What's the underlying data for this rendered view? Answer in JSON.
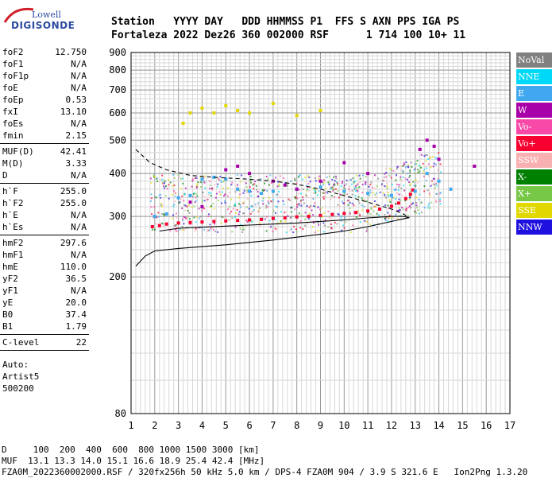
{
  "logo": {
    "line1": "Lowell",
    "line2": "DIGISONDE"
  },
  "header": {
    "line1": "Station   YYYY DAY   DDD HHMMSS P1  FFS S AXN PPS IGA PS",
    "line2": "Fortaleza 2022 Dez26 360 002000 RSF      1 714 100 10+ 11"
  },
  "params": {
    "group1": [
      {
        "k": "foF2",
        "v": "12.750"
      },
      {
        "k": "foF1",
        "v": "N/A"
      },
      {
        "k": "foF1p",
        "v": "N/A"
      },
      {
        "k": "foE",
        "v": "N/A"
      },
      {
        "k": "foEp",
        "v": "0.53"
      },
      {
        "k": "fxI",
        "v": "13.10"
      },
      {
        "k": "foEs",
        "v": "N/A"
      },
      {
        "k": "fmin",
        "v": "2.15"
      }
    ],
    "group2": [
      {
        "k": "MUF(D)",
        "v": "42.41"
      },
      {
        "k": "M(D)",
        "v": "3.33"
      },
      {
        "k": "D",
        "v": "N/A"
      }
    ],
    "group3": [
      {
        "k": "h`F",
        "v": "255.0"
      },
      {
        "k": "h`F2",
        "v": "255.0"
      },
      {
        "k": "h`E",
        "v": "N/A"
      },
      {
        "k": "h`Es",
        "v": "N/A"
      }
    ],
    "group4": [
      {
        "k": "hmF2",
        "v": "297.6"
      },
      {
        "k": "hmF1",
        "v": "N/A"
      },
      {
        "k": "hmE",
        "v": "110.0"
      },
      {
        "k": "yF2",
        "v": "36.5"
      },
      {
        "k": "yF1",
        "v": "N/A"
      },
      {
        "k": "yE",
        "v": "20.0"
      },
      {
        "k": "B0",
        "v": "37.4"
      },
      {
        "k": "B1",
        "v": "1.79"
      }
    ],
    "group5": [
      {
        "k": "C-level",
        "v": "22"
      }
    ],
    "auto": [
      "Auto:",
      "Artist5",
      "500200"
    ]
  },
  "legend": [
    {
      "label": "NoVal",
      "color": "#808080"
    },
    {
      "label": "NNE",
      "color": "#00d8f8"
    },
    {
      "label": "E",
      "color": "#40a8f0"
    },
    {
      "label": "W",
      "color": "#a800a8"
    },
    {
      "label": "Vo-",
      "color": "#f848a8"
    },
    {
      "label": "Vo+",
      "color": "#f80030"
    },
    {
      "label": "SSW",
      "color": "#f8b0b0"
    },
    {
      "label": "X-",
      "color": "#008000"
    },
    {
      "label": "X+",
      "color": "#78c848"
    },
    {
      "label": "SSE",
      "color": "#e0d800"
    },
    {
      "label": "NNW",
      "color": "#2010e0"
    }
  ],
  "chart_data": {
    "type": "scatter",
    "title": "",
    "xlabel": "",
    "ylabel": "",
    "xlim": [
      1,
      17
    ],
    "ylim": [
      80,
      900
    ],
    "x_ticks": [
      "1",
      "2",
      "3",
      "4",
      "5",
      "6",
      "7",
      "8",
      "9",
      "10",
      "11",
      "12",
      "13",
      "14",
      "15",
      "16",
      "17"
    ],
    "y_ticks": [
      "80",
      "200",
      "300",
      "400",
      "500",
      "600",
      "700",
      "800",
      "900"
    ],
    "y_tick_values": [
      80,
      200,
      300,
      400,
      500,
      600,
      700,
      800,
      900
    ],
    "y_scale": "log",
    "grid": true,
    "series": [
      {
        "name": "Vo+",
        "color": "#f80030",
        "points": [
          [
            1.9,
            280
          ],
          [
            2.2,
            282
          ],
          [
            2.5,
            285
          ],
          [
            3,
            287
          ],
          [
            3.5,
            288
          ],
          [
            4,
            289
          ],
          [
            4.5,
            290
          ],
          [
            5,
            291
          ],
          [
            5.5,
            292
          ],
          [
            6,
            293
          ],
          [
            6.5,
            294
          ],
          [
            7,
            296
          ],
          [
            7.5,
            297
          ],
          [
            8,
            299
          ],
          [
            8.5,
            300
          ],
          [
            9,
            302
          ],
          [
            9.5,
            304
          ],
          [
            10,
            306
          ],
          [
            10.5,
            308
          ],
          [
            11,
            311
          ],
          [
            11.5,
            315
          ],
          [
            12,
            321
          ],
          [
            12.3,
            328
          ],
          [
            12.6,
            338
          ],
          [
            12.8,
            348
          ],
          [
            12.9,
            358
          ]
        ]
      },
      {
        "name": "E",
        "color": "#40a8f0",
        "points": [
          [
            2,
            300
          ],
          [
            2.5,
            305
          ],
          [
            3,
            340
          ],
          [
            3.5,
            345
          ],
          [
            4,
            385
          ],
          [
            4.5,
            390
          ],
          [
            5,
            385
          ],
          [
            5.5,
            360
          ],
          [
            6,
            355
          ],
          [
            6.5,
            350
          ],
          [
            7,
            355
          ],
          [
            8,
            360
          ],
          [
            9,
            365
          ],
          [
            10,
            355
          ],
          [
            11,
            350
          ],
          [
            12,
            345
          ],
          [
            13,
            355
          ],
          [
            13.5,
            400
          ],
          [
            14,
            380
          ],
          [
            14.5,
            360
          ]
        ]
      },
      {
        "name": "W",
        "color": "#a800a8",
        "points": [
          [
            3.5,
            330
          ],
          [
            4,
            320
          ],
          [
            5,
            410
          ],
          [
            5.5,
            420
          ],
          [
            6,
            400
          ],
          [
            7,
            380
          ],
          [
            7.5,
            370
          ],
          [
            8,
            360
          ],
          [
            9,
            380
          ],
          [
            10,
            430
          ],
          [
            11,
            400
          ],
          [
            13.2,
            470
          ],
          [
            13.5,
            500
          ],
          [
            13.8,
            480
          ],
          [
            14,
            440
          ],
          [
            15.5,
            420
          ]
        ]
      },
      {
        "name": "SSE",
        "color": "#e0d800",
        "points": [
          [
            3.2,
            560
          ],
          [
            3.5,
            600
          ],
          [
            4,
            620
          ],
          [
            4.5,
            600
          ],
          [
            5,
            630
          ],
          [
            5.5,
            610
          ],
          [
            6,
            600
          ],
          [
            7,
            640
          ],
          [
            8,
            590
          ],
          [
            9,
            610
          ]
        ]
      }
    ],
    "curves": [
      {
        "name": "",
        "style": "dashed",
        "points": [
          [
            1.2,
            470
          ],
          [
            1.8,
            430
          ],
          [
            2.5,
            410
          ],
          [
            3.5,
            395
          ],
          [
            4.5,
            390
          ],
          [
            6,
            385
          ],
          [
            7,
            380
          ],
          [
            8,
            372
          ],
          [
            9,
            360
          ],
          [
            10,
            345
          ],
          [
            11,
            330
          ],
          [
            12,
            315
          ],
          [
            12.5,
            305
          ],
          [
            12.75,
            298
          ]
        ]
      },
      {
        "name": "",
        "style": "solid",
        "points": [
          [
            1.2,
            215
          ],
          [
            1.6,
            230
          ],
          [
            2,
            238
          ],
          [
            3,
            242
          ],
          [
            4,
            245
          ],
          [
            5,
            248
          ],
          [
            6,
            252
          ],
          [
            7,
            256
          ],
          [
            8,
            261
          ],
          [
            9,
            266
          ],
          [
            10,
            272
          ],
          [
            11,
            280
          ],
          [
            11.7,
            287
          ],
          [
            12.2,
            292
          ],
          [
            12.5,
            295
          ],
          [
            12.75,
            297.6
          ]
        ]
      },
      {
        "name": "",
        "style": "solid",
        "points": [
          [
            12.75,
            297.6
          ],
          [
            12.5,
            300
          ],
          [
            12,
            300
          ],
          [
            11,
            297
          ],
          [
            10,
            293
          ],
          [
            9,
            290
          ],
          [
            8,
            287
          ],
          [
            7,
            285
          ],
          [
            6,
            283
          ],
          [
            5,
            281
          ],
          [
            4,
            279
          ],
          [
            3,
            277
          ],
          [
            2.2,
            272
          ]
        ]
      }
    ]
  },
  "footer": {
    "line1": "D     100  200  400  600  800 1000 1500 3000 [km]",
    "line2": "MUF  13.1 13.3 14.0 15.1 16.6 18.9 25.4 42.4 [MHz]",
    "line3": "FZA0M_2022360002000.RSF / 320fx256h 50 kHz 5.0 km / DPS-4 FZA0M 904 / 3.9 S 321.6 E   Ion2Png 1.3.20"
  }
}
